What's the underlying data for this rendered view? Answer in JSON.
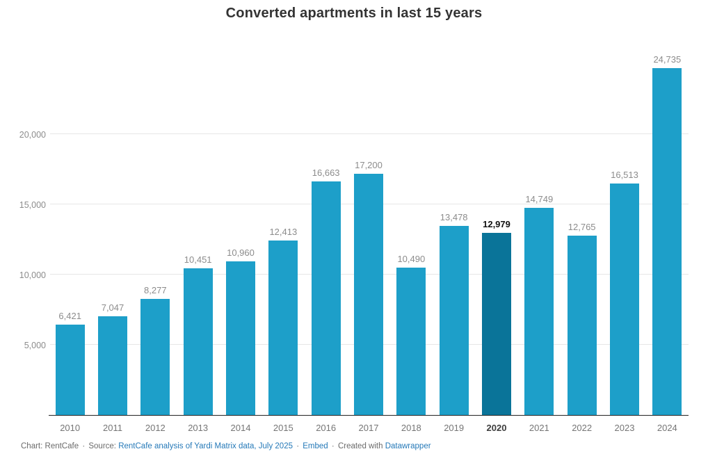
{
  "title": "Converted apartments in last 15 years",
  "chart_data": {
    "type": "bar",
    "title": "Converted apartments in last 15 years",
    "xlabel": "",
    "ylabel": "",
    "categories": [
      "2010",
      "2011",
      "2012",
      "2013",
      "2014",
      "2015",
      "2016",
      "2017",
      "2018",
      "2019",
      "2020",
      "2021",
      "2022",
      "2023",
      "2024"
    ],
    "values": [
      6421,
      7047,
      8277,
      10451,
      10960,
      12413,
      16663,
      17200,
      10490,
      13478,
      12979,
      14749,
      12765,
      16513,
      24735
    ],
    "value_labels": [
      "6,421",
      "7,047",
      "8,277",
      "10,451",
      "10,960",
      "12,413",
      "16,663",
      "17,200",
      "10,490",
      "13,478",
      "12,979",
      "14,749",
      "12,765",
      "16,513",
      "24,735"
    ],
    "highlight_index": 10,
    "ylim": [
      0,
      26600
    ],
    "yticks": [
      5000,
      10000,
      15000,
      20000
    ],
    "ytick_labels": [
      "5,000",
      "10,000",
      "15,000",
      "20,000"
    ],
    "grid": true,
    "legend": "none",
    "bar_color": "#1D9FC9",
    "highlight_bar_color": "#0A7499"
  },
  "footer": {
    "chart_credit": "Chart: RentCafe",
    "separator": "·",
    "source_prefix": "Source:",
    "source_link": "RentCafe analysis of Yardi Matrix data, July 2025",
    "embed_link": "Embed",
    "created_with": "Created with",
    "datawrapper_link": "Datawrapper",
    "link_color": "#2579B8"
  }
}
